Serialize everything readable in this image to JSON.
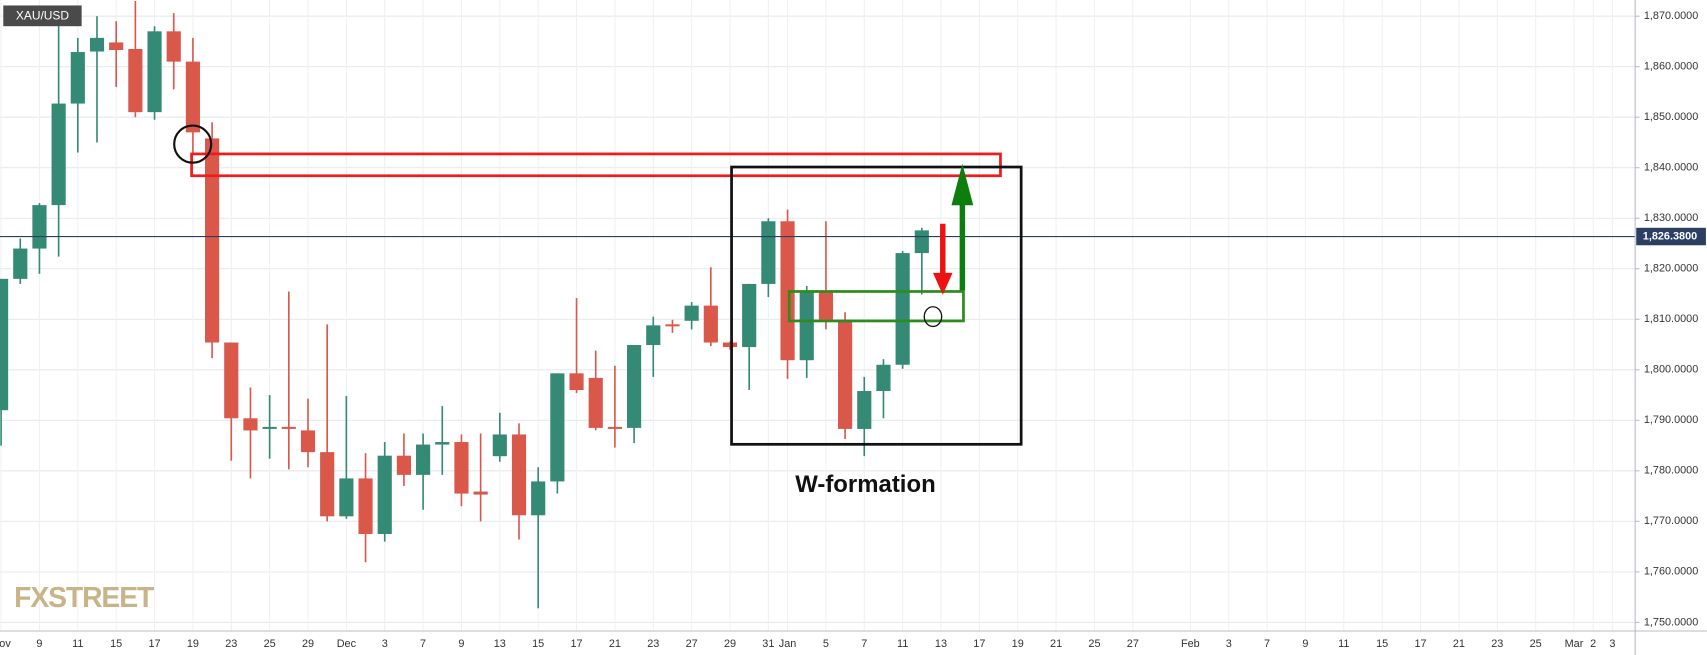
{
  "chart_data": {
    "type": "candlestick",
    "title": "XAU/USD",
    "categories": [
      "Nov",
      null,
      "9",
      null,
      "11",
      null,
      "15",
      null,
      "17",
      null,
      "19",
      null,
      "23",
      null,
      "25",
      null,
      "29",
      null,
      "Dec",
      null,
      "3",
      null,
      "7",
      null,
      "9",
      null,
      "13",
      null,
      "15",
      null,
      "17",
      null,
      "21",
      null,
      "23",
      null,
      "27",
      null,
      "29",
      null,
      "31",
      "Jan",
      null,
      "5",
      null,
      "7",
      null,
      "11",
      null,
      "13",
      null,
      "17",
      null,
      "19",
      null,
      "21",
      null,
      "25",
      null,
      "27",
      null,
      null,
      "Feb",
      null,
      "3",
      null,
      "7",
      null,
      "9",
      null,
      "11",
      null,
      "15",
      null,
      "17",
      null,
      "21",
      null,
      "23",
      null,
      "25",
      null,
      "Mar",
      "2",
      "3"
    ],
    "open": [
      1792,
      1818,
      1824,
      1832.6,
      1852.7,
      1863,
      1864.8,
      1863.5,
      1851,
      1867,
      1861,
      1845.8,
      1805.4,
      1790.4,
      1788.3,
      1788.7,
      1788,
      1783.7,
      1771,
      1778.5,
      1767.5,
      1783,
      1779.2,
      1785.2,
      1785.7,
      1775.9,
      1782.9,
      1787.2,
      1771.2,
      1777.9,
      1799.3,
      1798.4,
      1788.7,
      1788.5,
      1804.9,
      1809,
      1809.7,
      1812.7,
      1805.4,
      1804.5,
      1817,
      1829.4,
      1801.9,
      1815.3,
      1809.9,
      1788.3,
      1795.8,
      1801,
      1823.1,
      null,
      null,
      null,
      null,
      null,
      null,
      null,
      null,
      null,
      null,
      null,
      null,
      null,
      null,
      null,
      null,
      null,
      null,
      null,
      null,
      null,
      null,
      null,
      null,
      null,
      null,
      null,
      null,
      null,
      null,
      null,
      null,
      null,
      null,
      null,
      null
    ],
    "high": [
      1818,
      1826,
      1833,
      1870,
      1865.7,
      1870,
      1869,
      1873,
      1868,
      1870.6,
      1865.7,
      1849,
      1805.4,
      1796.5,
      1795,
      1815.5,
      1794.3,
      1809,
      1794.8,
      1783.5,
      1785.7,
      1787.4,
      1787.4,
      1792.8,
      1787.2,
      1787.4,
      1791.5,
      1789.4,
      1780.7,
      1799.3,
      1814.2,
      1803.8,
      1800.8,
      1804.9,
      1810.5,
      1809.9,
      1813.4,
      1820.3,
      1805.6,
      1817,
      1830,
      1831.7,
      1816.6,
      1829.4,
      1811.4,
      1798.6,
      1802.1,
      1823.5,
      1828.1,
      null,
      null,
      null,
      null,
      null,
      null,
      null,
      null,
      null,
      null,
      null,
      null,
      null,
      null,
      null,
      null,
      null,
      null,
      null,
      null,
      null,
      null,
      null,
      null,
      null,
      null,
      null,
      null,
      null,
      null,
      null,
      null,
      null,
      null,
      null,
      null
    ],
    "low": [
      1785,
      1817,
      1819,
      1822.4,
      1843,
      1845,
      1856,
      1850,
      1849.5,
      1855.5,
      1843,
      1802.3,
      1782,
      1778.5,
      1782.4,
      1780.3,
      1780.7,
      1770,
      1770.5,
      1761.9,
      1766,
      1777,
      1772.3,
      1779.2,
      1773,
      1770,
      1781.8,
      1766.4,
      1752.8,
      1775.5,
      1795.4,
      1788,
      1784.6,
      1785.5,
      1798.6,
      1807.3,
      1808,
      1804.7,
      1804,
      1796,
      1814.4,
      1798.2,
      1798.4,
      1808,
      1786.3,
      1782.9,
      1790.4,
      1800.2,
      1814.9,
      null,
      null,
      null,
      null,
      null,
      null,
      null,
      null,
      null,
      null,
      null,
      null,
      null,
      null,
      null,
      null,
      null,
      null,
      null,
      null,
      null,
      null,
      null,
      null,
      null,
      null,
      null,
      null,
      null,
      null,
      null,
      null,
      null,
      null,
      null,
      null
    ],
    "close": [
      1818,
      1824,
      1832.6,
      1852.7,
      1862.9,
      1865.7,
      1863.3,
      1851,
      1867,
      1861,
      1847,
      1805.4,
      1790.4,
      1788,
      1788.7,
      1788.3,
      1783.7,
      1771,
      1778.5,
      1767.5,
      1783,
      1779.2,
      1785.2,
      1785.7,
      1775.5,
      1775.3,
      1787.2,
      1771.2,
      1777.9,
      1799.3,
      1796,
      1788.5,
      1788.3,
      1804.9,
      1808.8,
      1808.6,
      1812.7,
      1805.4,
      1804.5,
      1817,
      1829.4,
      1801.9,
      1815.3,
      1809.9,
      1788.3,
      1795.8,
      1801,
      1823.1,
      1827.6,
      null,
      null,
      null,
      null,
      null,
      null,
      null,
      null,
      null,
      null,
      null,
      null,
      null,
      null,
      null,
      null,
      null,
      null,
      null,
      null,
      null,
      null,
      null,
      null,
      null,
      null,
      null,
      null,
      null,
      null,
      null,
      null,
      null,
      null,
      null,
      null
    ],
    "up_color": "#348a74",
    "down_color": "#d9584a",
    "ylim": [
      1748.3,
      1873.2
    ],
    "yticks": [
      {
        "value": 1750,
        "label": "1,750.0000"
      },
      {
        "value": 1760,
        "label": "1,760.0000"
      },
      {
        "value": 1770,
        "label": "1,770.0000"
      },
      {
        "value": 1780,
        "label": "1,780.0000"
      },
      {
        "value": 1790,
        "label": "1,790.0000"
      },
      {
        "value": 1800,
        "label": "1,800.0000"
      },
      {
        "value": 1810,
        "label": "1,810.0000"
      },
      {
        "value": 1820,
        "label": "1,820.0000"
      },
      {
        "value": 1830,
        "label": "1,830.0000"
      },
      {
        "value": 1840,
        "label": "1,840.0000"
      },
      {
        "value": 1850,
        "label": "1,850.0000"
      },
      {
        "value": 1860,
        "label": "1,860.0000"
      },
      {
        "value": 1870,
        "label": "1,870.0000"
      }
    ],
    "grid": true,
    "last_price": {
      "value": 1826.38,
      "label": "1,826.3800"
    },
    "annotation": "W-formation",
    "watermark": "FXSTREET"
  }
}
